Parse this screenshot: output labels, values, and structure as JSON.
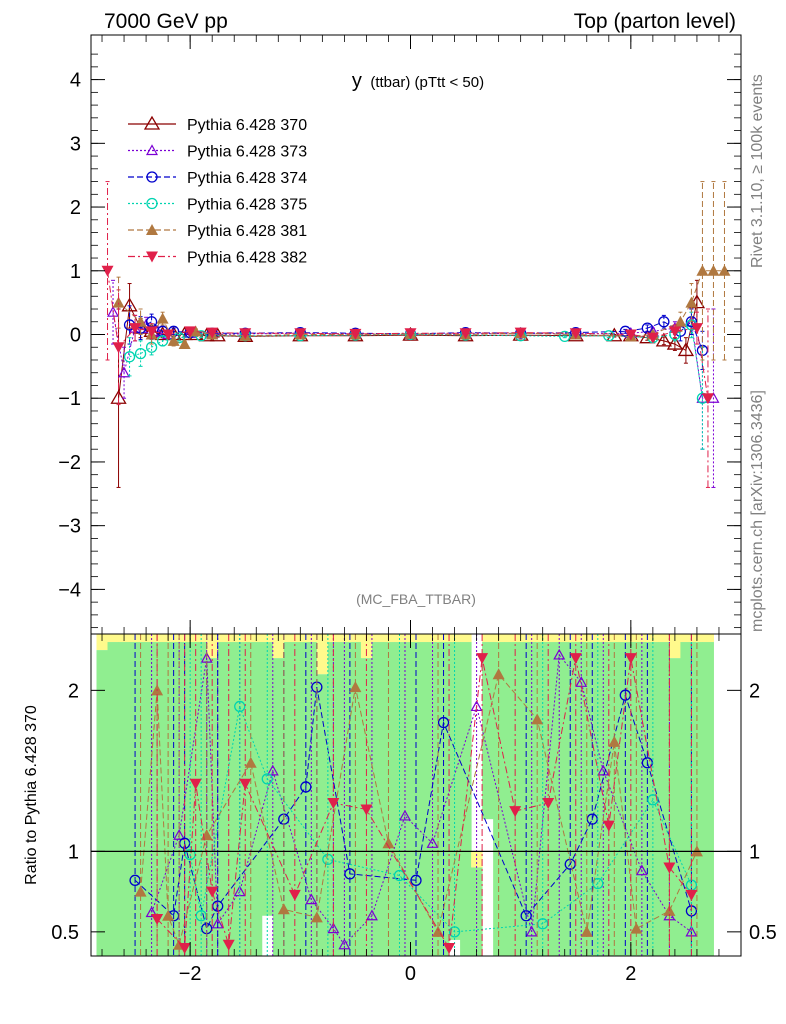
{
  "header": {
    "left": "7000 GeV pp",
    "right": "Top (parton level)"
  },
  "side_labels": {
    "rivet": "Rivet 3.1.10, ≥ 100k events",
    "source": "mcplots.cern.ch [arXiv:1306.3436]"
  },
  "chart_data": [
    {
      "type": "line",
      "title": "y (ttbar) (pTtt < 50)",
      "title_main": "y",
      "title_sub": "(ttbar) (pTtt < 50)",
      "watermark": "(MC_FBA_TTBAR)",
      "xlim": [
        -2.9,
        3.0
      ],
      "ylim": [
        -4.7,
        4.7
      ],
      "x_ticks": [
        -2,
        0,
        2
      ],
      "y_ticks": [
        -4,
        -3,
        -2,
        -1,
        0,
        1,
        2,
        3,
        4
      ],
      "legend_position": "top-left",
      "series": [
        {
          "name": "Pythia 6.428 370",
          "color": "#8b0000",
          "marker": "triangle-open",
          "dash": "solid",
          "x": [
            -2.65,
            -2.55,
            -2.45,
            -2.35,
            -2.25,
            -2.15,
            -2.05,
            -1.95,
            -1.85,
            -1.75,
            -1.5,
            -1.0,
            -0.5,
            0.0,
            0.5,
            1.0,
            1.5,
            1.85,
            2.0,
            2.15,
            2.3,
            2.4,
            2.5,
            2.6
          ],
          "y": [
            -1.0,
            0.45,
            0.1,
            0.05,
            0.0,
            0.0,
            0.0,
            0.0,
            -0.02,
            -0.02,
            -0.03,
            -0.02,
            -0.02,
            -0.01,
            -0.02,
            -0.01,
            -0.02,
            -0.02,
            -0.02,
            -0.05,
            -0.1,
            -0.15,
            -0.25,
            0.5
          ],
          "err": [
            1.4,
            0.35,
            0.15,
            0.08,
            0.05,
            0.04,
            0.03,
            0.03,
            0.02,
            0.02,
            0.02,
            0.02,
            0.02,
            0.02,
            0.02,
            0.02,
            0.02,
            0.02,
            0.03,
            0.04,
            0.06,
            0.1,
            0.2,
            0.35
          ]
        },
        {
          "name": "Pythia 6.428 373",
          "color": "#7b00d4",
          "marker": "triangle-open-small",
          "dash": "dot",
          "x": [
            -2.7,
            -2.6,
            -2.5,
            -2.4,
            -2.3,
            -2.2,
            -2.0,
            -1.8,
            -1.5,
            -1.0,
            -0.5,
            0.0,
            0.5,
            1.0,
            1.5,
            2.0,
            2.2,
            2.4,
            2.55,
            2.65,
            2.75
          ],
          "y": [
            0.35,
            -0.6,
            0.1,
            0.15,
            0.05,
            0.0,
            0.02,
            0.0,
            0.01,
            0.02,
            0.01,
            0.0,
            0.01,
            0.02,
            0.01,
            0.02,
            0.05,
            0.1,
            0.2,
            -1.0,
            -1.0
          ],
          "err": [
            0.5,
            0.4,
            0.2,
            0.12,
            0.08,
            0.05,
            0.03,
            0.02,
            0.02,
            0.02,
            0.02,
            0.02,
            0.02,
            0.02,
            0.02,
            0.03,
            0.05,
            0.1,
            0.2,
            0.8,
            1.4
          ]
        },
        {
          "name": "Pythia 6.428 374",
          "color": "#0000cc",
          "marker": "circle-open",
          "dash": "dash",
          "x": [
            -2.55,
            -2.45,
            -2.35,
            -2.25,
            -2.15,
            -2.0,
            -1.8,
            -1.5,
            -1.0,
            -0.5,
            0.0,
            0.5,
            1.0,
            1.5,
            1.95,
            2.15,
            2.3,
            2.45,
            2.55,
            2.65
          ],
          "y": [
            0.15,
            0.1,
            0.2,
            0.05,
            0.05,
            0.03,
            0.02,
            0.02,
            0.03,
            0.02,
            0.01,
            0.03,
            0.02,
            0.03,
            0.05,
            0.1,
            0.2,
            0.05,
            0.2,
            -0.25
          ],
          "err": [
            0.3,
            0.18,
            0.12,
            0.08,
            0.05,
            0.03,
            0.03,
            0.02,
            0.02,
            0.02,
            0.02,
            0.02,
            0.02,
            0.02,
            0.03,
            0.05,
            0.1,
            0.15,
            0.2,
            0.3
          ]
        },
        {
          "name": "Pythia 6.428 375",
          "color": "#00d4b0",
          "marker": "circle-open",
          "dash": "dot",
          "x": [
            -2.55,
            -2.45,
            -2.35,
            -2.25,
            -2.1,
            -1.9,
            -1.5,
            -1.0,
            -0.5,
            0.0,
            0.5,
            1.0,
            1.4,
            1.8,
            2.2,
            2.4,
            2.55,
            2.65
          ],
          "y": [
            -0.35,
            -0.3,
            -0.2,
            -0.1,
            -0.05,
            -0.02,
            -0.02,
            -0.02,
            -0.01,
            0.0,
            -0.01,
            -0.02,
            -0.03,
            -0.02,
            -0.05,
            0.0,
            0.15,
            -1.0
          ],
          "err": [
            0.3,
            0.2,
            0.12,
            0.08,
            0.05,
            0.03,
            0.02,
            0.02,
            0.02,
            0.02,
            0.02,
            0.02,
            0.02,
            0.03,
            0.05,
            0.1,
            0.2,
            0.8
          ]
        },
        {
          "name": "Pythia 6.428 381",
          "color": "#b07840",
          "marker": "triangle-filled",
          "dash": "dash",
          "x": [
            -2.65,
            -2.45,
            -2.35,
            -2.25,
            -2.15,
            -2.05,
            -1.95,
            -1.8,
            -1.5,
            -1.0,
            -0.5,
            0.0,
            0.5,
            1.0,
            1.5,
            2.0,
            2.2,
            2.45,
            2.55,
            2.65,
            2.75,
            2.85
          ],
          "y": [
            0.5,
            0.2,
            0.0,
            0.25,
            -0.1,
            -0.15,
            0.05,
            0.0,
            -0.02,
            0.0,
            0.0,
            0.01,
            0.0,
            0.02,
            0.0,
            -0.03,
            0.0,
            0.2,
            0.5,
            1.0,
            1.0,
            1.0
          ],
          "err": [
            0.4,
            0.2,
            0.15,
            0.1,
            0.08,
            0.05,
            0.04,
            0.03,
            0.02,
            0.02,
            0.02,
            0.02,
            0.02,
            0.02,
            0.02,
            0.03,
            0.05,
            0.15,
            0.3,
            1.4,
            1.4,
            1.4
          ]
        },
        {
          "name": "Pythia 6.428 382",
          "color": "#e0204a",
          "marker": "triangle-down-filled",
          "dash": "dashdot",
          "x": [
            -2.75,
            -2.65,
            -2.5,
            -2.35,
            -2.2,
            -2.0,
            -1.8,
            -1.5,
            -1.0,
            -0.5,
            0.0,
            0.5,
            1.0,
            1.5,
            2.0,
            2.2,
            2.4,
            2.6,
            2.7
          ],
          "y": [
            1.0,
            -0.2,
            0.1,
            0.05,
            0.0,
            0.05,
            0.03,
            0.02,
            0.02,
            0.01,
            0.02,
            0.02,
            0.03,
            0.02,
            0.0,
            -0.05,
            0.05,
            0.1,
            -1.0
          ],
          "err": [
            1.4,
            0.9,
            0.2,
            0.12,
            0.06,
            0.04,
            0.03,
            0.02,
            0.02,
            0.02,
            0.02,
            0.02,
            0.02,
            0.02,
            0.03,
            0.05,
            0.1,
            0.25,
            1.4
          ]
        }
      ]
    },
    {
      "type": "line",
      "ylabel": "Ratio to Pythia 6.428 370",
      "xlim": [
        -2.9,
        3.0
      ],
      "ylim": [
        0.35,
        2.35
      ],
      "x_ticks": [
        -2,
        0,
        2
      ],
      "y_ticks": [
        0.5,
        1,
        2
      ],
      "reference": 1.0,
      "bands": {
        "x": [
          -2.8,
          -2.7,
          -2.6,
          -2.5,
          -2.4,
          -2.3,
          -2.2,
          -2.1,
          -2.0,
          -1.9,
          -1.8,
          -1.7,
          -1.6,
          -1.5,
          -1.4,
          -1.3,
          -1.2,
          -1.1,
          -1.0,
          -0.9,
          -0.8,
          -0.7,
          -0.6,
          -0.5,
          -0.4,
          -0.3,
          -0.2,
          -0.1,
          0.0,
          0.1,
          0.2,
          0.3,
          0.4,
          0.5,
          0.6,
          0.7,
          0.8,
          0.9,
          1.0,
          1.1,
          1.2,
          1.3,
          1.4,
          1.5,
          1.6,
          1.7,
          1.8,
          1.9,
          2.0,
          2.1,
          2.2,
          2.3,
          2.4,
          2.5,
          2.6,
          2.7
        ],
        "green_upper": [
          2.25,
          2.3,
          2.3,
          2.3,
          2.3,
          2.3,
          2.3,
          2.3,
          2.3,
          2.3,
          2.2,
          2.3,
          2.3,
          2.3,
          2.3,
          2.3,
          2.2,
          2.3,
          2.3,
          2.3,
          2.1,
          2.3,
          2.3,
          2.3,
          2.2,
          2.3,
          2.3,
          2.3,
          2.3,
          2.3,
          2.3,
          2.3,
          2.3,
          2.3,
          0.9,
          2.3,
          2.3,
          2.3,
          2.3,
          2.3,
          2.3,
          2.3,
          2.3,
          2.3,
          2.3,
          2.3,
          2.3,
          2.3,
          2.3,
          2.3,
          2.3,
          2.3,
          2.2,
          2.3,
          2.3,
          2.3
        ],
        "green_lower": [
          0.35,
          0.35,
          0.35,
          0.35,
          0.35,
          0.35,
          0.35,
          0.35,
          0.35,
          0.35,
          0.35,
          0.35,
          0.35,
          0.35,
          0.35,
          0.6,
          0.35,
          0.35,
          0.35,
          0.35,
          0.35,
          0.35,
          0.35,
          0.35,
          0.35,
          0.35,
          0.35,
          0.35,
          0.35,
          0.35,
          0.35,
          0.35,
          0.45,
          0.35,
          0.35,
          1.2,
          0.35,
          0.35,
          0.35,
          0.35,
          0.35,
          0.35,
          0.35,
          0.35,
          0.35,
          0.35,
          0.35,
          0.35,
          0.35,
          0.35,
          0.35,
          0.35,
          0.35,
          0.35,
          0.35,
          0.35
        ],
        "yellow_upper": [
          2.35,
          2.35,
          2.35,
          2.35,
          2.35,
          2.35,
          2.35,
          2.35,
          2.35,
          2.35,
          2.35,
          2.35,
          2.35,
          2.35,
          2.35,
          2.35,
          2.35,
          2.35,
          2.35,
          2.35,
          2.35,
          2.35,
          2.35,
          2.35,
          2.35,
          2.35,
          2.35,
          2.35,
          2.35,
          2.35,
          2.35,
          2.35,
          2.35,
          2.35,
          1.0,
          2.35,
          2.35,
          2.35,
          2.35,
          2.35,
          2.35,
          2.35,
          2.35,
          2.35,
          2.35,
          2.35,
          2.35,
          2.35,
          2.35,
          2.35,
          2.35,
          2.35,
          2.35,
          2.35,
          2.35,
          2.35
        ]
      },
      "series": [
        {
          "name": "Pythia 6.428 373",
          "color": "#7b00d4",
          "x": [
            -2.35,
            -2.1,
            -1.85,
            -1.75,
            -1.55,
            -1.25,
            -0.9,
            -0.7,
            -0.6,
            -0.35,
            -0.05,
            0.2,
            0.6,
            1.1,
            1.35,
            1.55,
            1.75,
            2.1,
            2.35,
            2.55
          ],
          "y": [
            0.62,
            1.1,
            2.2,
            0.55,
            0.75,
            1.5,
            0.7,
            0.52,
            0.42,
            0.6,
            1.22,
            1.05,
            1.9,
            0.5,
            2.22,
            2.05,
            1.5,
            0.88,
            0.6,
            0.5
          ]
        },
        {
          "name": "Pythia 6.428 374",
          "color": "#0000cc",
          "x": [
            -2.5,
            -2.15,
            -2.05,
            -1.85,
            -1.75,
            -1.15,
            -0.95,
            -0.85,
            -0.55,
            0.05,
            0.3,
            1.05,
            1.45,
            1.65,
            1.95,
            2.15,
            2.55
          ],
          "y": [
            0.82,
            0.6,
            1.05,
            0.52,
            0.66,
            1.2,
            1.4,
            2.02,
            0.86,
            0.82,
            1.8,
            0.6,
            0.92,
            1.2,
            1.97,
            1.55,
            0.63
          ]
        },
        {
          "name": "Pythia 6.428 375",
          "color": "#00d4b0",
          "x": [
            -2.0,
            -1.9,
            -1.55,
            -1.3,
            -0.75,
            -0.1,
            0.4,
            1.2,
            1.7,
            2.2,
            2.55
          ],
          "y": [
            0.98,
            0.6,
            1.9,
            1.45,
            0.95,
            0.85,
            0.5,
            0.55,
            0.8,
            1.32,
            0.79
          ]
        },
        {
          "name": "Pythia 6.428 381",
          "color": "#b07840",
          "x": [
            -2.45,
            -2.3,
            -2.2,
            -2.1,
            -1.85,
            -1.45,
            -1.15,
            -0.85,
            -0.5,
            -0.2,
            0.25,
            0.8,
            1.15,
            1.6,
            1.85,
            2.05,
            2.35,
            2.6
          ],
          "y": [
            0.75,
            2.0,
            0.6,
            0.42,
            1.1,
            1.55,
            0.64,
            0.59,
            2.02,
            1.05,
            0.5,
            2.1,
            1.82,
            0.5,
            1.68,
            0.52,
            0.63,
            1.0
          ]
        },
        {
          "name": "Pythia 6.428 382",
          "color": "#e0204a",
          "x": [
            -2.3,
            -2.05,
            -1.95,
            -1.8,
            -1.65,
            -1.5,
            -1.05,
            -0.7,
            -0.4,
            0.35,
            0.65,
            0.95,
            1.25,
            1.5,
            1.8,
            2.0,
            2.35,
            2.55
          ],
          "y": [
            0.58,
            0.4,
            1.42,
            0.75,
            0.42,
            1.42,
            0.73,
            1.3,
            1.26,
            0.4,
            2.2,
            1.25,
            1.3,
            2.2,
            1.16,
            2.2,
            0.9,
            0.73
          ]
        }
      ]
    }
  ]
}
